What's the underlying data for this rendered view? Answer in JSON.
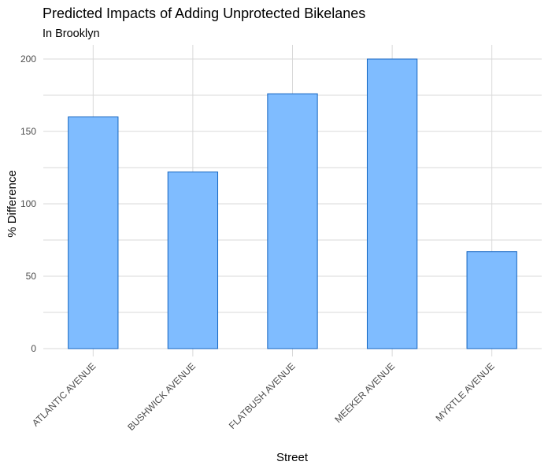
{
  "chart_data": {
    "type": "bar",
    "title": "Predicted Impacts of Adding Unprotected Bikelanes",
    "subtitle": "In Brooklyn",
    "xlabel": "Street",
    "ylabel": "% Difference",
    "categories": [
      "ATLANTIC AVENUE",
      "BUSHWICK AVENUE",
      "FLATBUSH AVENUE",
      "MEEKER AVENUE",
      "MYRTLE AVENUE"
    ],
    "values": [
      160,
      122,
      176,
      200,
      67
    ],
    "ylim": [
      0,
      210
    ],
    "yticks": [
      0,
      50,
      100,
      150,
      200
    ],
    "grid": true,
    "legend": "none",
    "colors": {
      "bar_fill": "#7fbcff",
      "bar_stroke": "#1565c0"
    }
  }
}
